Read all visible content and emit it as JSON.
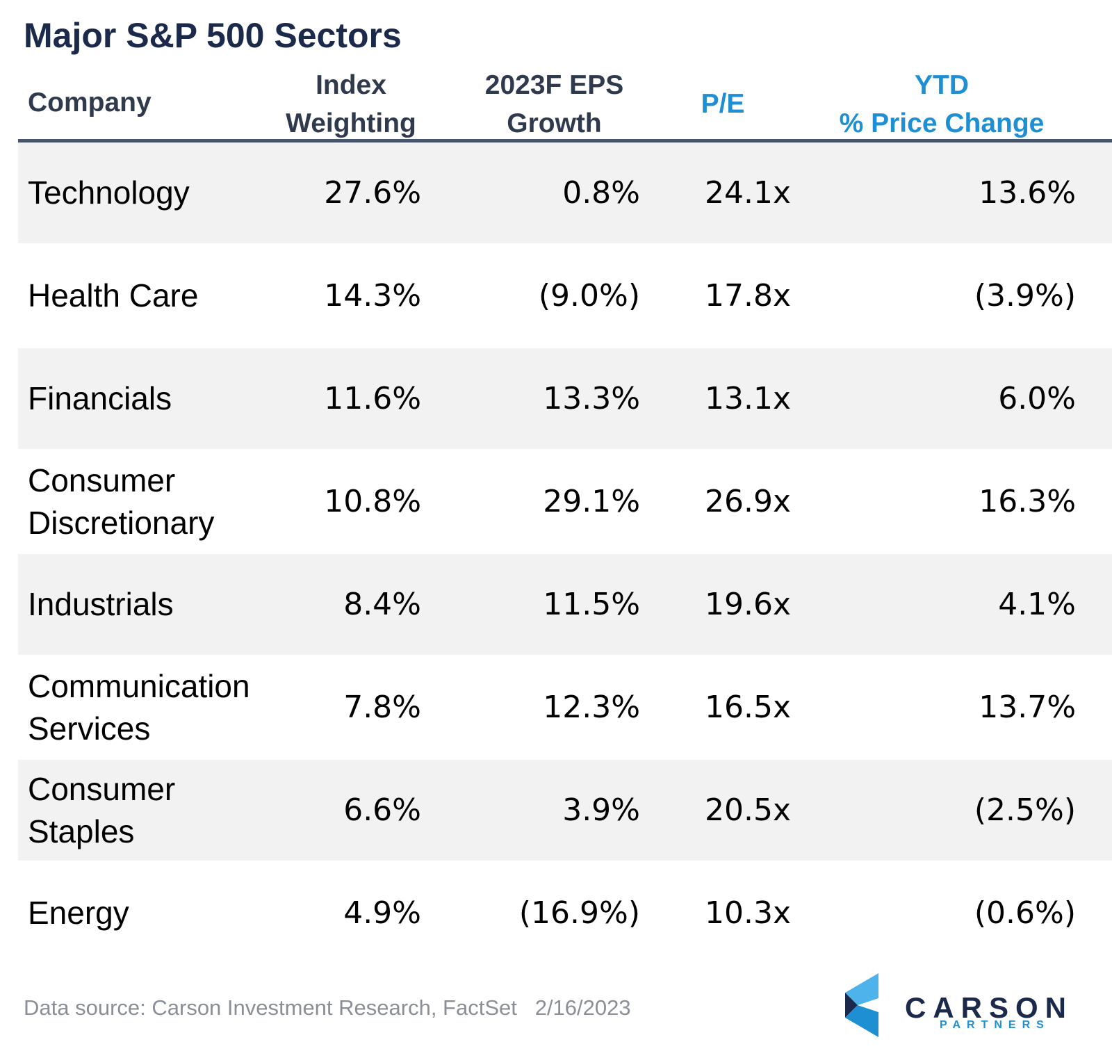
{
  "title": "Major S&P 500 Sectors",
  "headers": {
    "company": "Company",
    "index_weighting": [
      "Index",
      "Weighting"
    ],
    "eps_growth": [
      "2023F EPS",
      "Growth"
    ],
    "pe": "P/E",
    "ytd": [
      "YTD",
      "% Price Change"
    ]
  },
  "rows": [
    {
      "name": [
        "Technology"
      ],
      "weighting": "27.6%",
      "eps": "0.8%",
      "pe": "24.1x",
      "ytd": "13.6%"
    },
    {
      "name": [
        "Health Care"
      ],
      "weighting": "14.3%",
      "eps": "(9.0%)",
      "pe": "17.8x",
      "ytd": "(3.9%)"
    },
    {
      "name": [
        "Financials"
      ],
      "weighting": "11.6%",
      "eps": "13.3%",
      "pe": "13.1x",
      "ytd": "6.0%"
    },
    {
      "name": [
        "Consumer",
        "Discretionary"
      ],
      "weighting": "10.8%",
      "eps": "29.1%",
      "pe": "26.9x",
      "ytd": "16.3%"
    },
    {
      "name": [
        "Industrials"
      ],
      "weighting": "8.4%",
      "eps": "11.5%",
      "pe": "19.6x",
      "ytd": "4.1%"
    },
    {
      "name": [
        "Communication",
        "Services"
      ],
      "weighting": "7.8%",
      "eps": "12.3%",
      "pe": "16.5x",
      "ytd": "13.7%"
    },
    {
      "name": [
        "Consumer",
        "Staples"
      ],
      "weighting": "6.6%",
      "eps": "3.9%",
      "pe": "20.5x",
      "ytd": "(2.5%)"
    },
    {
      "name": [
        "Energy"
      ],
      "weighting": "4.9%",
      "eps": "(16.9%)",
      "pe": "10.3x",
      "ytd": "(0.6%)"
    }
  ],
  "footer": {
    "source": "Data source: Carson Investment Research, FactSet   2/16/2023"
  },
  "logo": {
    "wordmark": "CARSON",
    "subtext": "PARTNERS",
    "colors": {
      "navy": "#1b2a4a",
      "blue": "#1f8fd4",
      "light_blue": "#4db3ea"
    }
  },
  "colors": {
    "title": "#1b2a4a",
    "header_text": "#2f3a4d",
    "header_accent": "#1f8fd4",
    "row_shade": "#f2f2f2",
    "rule": "#48566b"
  }
}
